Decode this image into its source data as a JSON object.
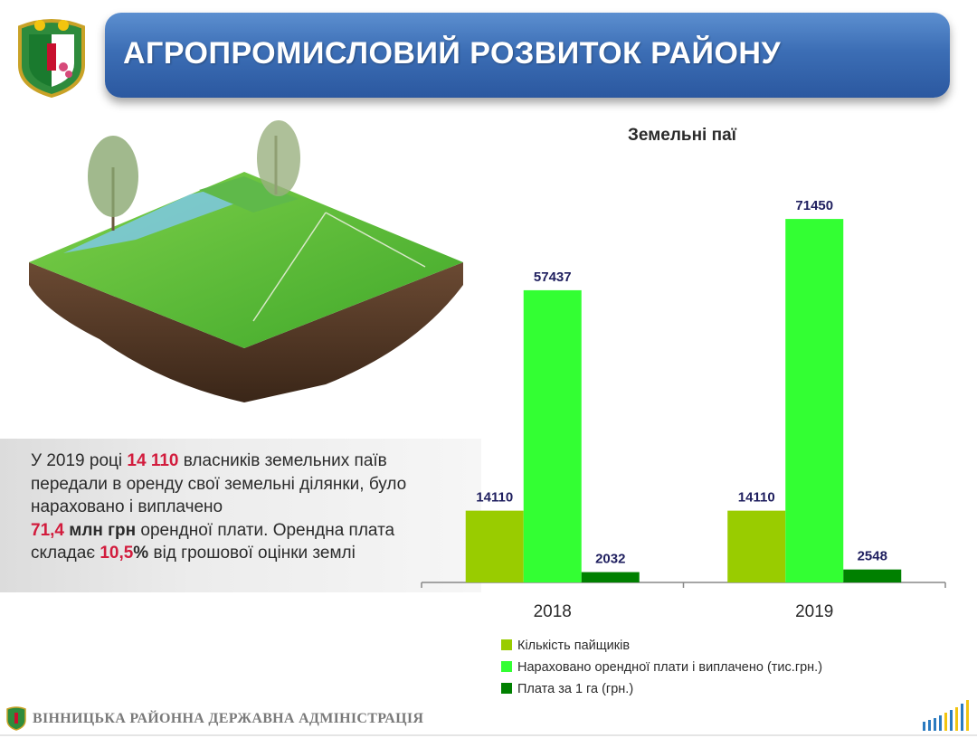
{
  "header": {
    "title": "АГРОПРОМИСЛОВИЙ РОЗВИТОК РАЙОНУ"
  },
  "info": {
    "s1": "У 2019 році ",
    "h1": "14 110",
    "s2": " власників земельних паїв передали в оренду свої земельні ділянки, було нараховано і виплачено ",
    "h2": "71,4",
    "h2b": " млн грн",
    "s3": " орендної плати. Орендна плата складає ",
    "h3": "10,5",
    "h3b": "%",
    "s4": " від грошової оцінки землі"
  },
  "footer": {
    "text": "ВІННИЦЬКА РАЙОННА ДЕРЖАВНА АДМІНІСТРАЦІЯ"
  },
  "colors": {
    "banner": "#3c6eb5",
    "highlight": "#d21c3d",
    "series1": "#99cc00",
    "series2": "#33ff33",
    "series3": "#008000",
    "value_label": "#1f1f5f"
  },
  "chart_data": {
    "type": "bar",
    "title": "Земельні паї",
    "categories": [
      "2018",
      "2019"
    ],
    "series": [
      {
        "name": "Кількість пайщиків",
        "values": [
          14110,
          14110
        ],
        "color": "#99cc00"
      },
      {
        "name": "Нараховано орендної плати і виплачено (тис.грн.)",
        "values": [
          57437,
          71450
        ],
        "color": "#33ff33"
      },
      {
        "name": "Плата за 1 га (грн.)",
        "values": [
          2032,
          2548
        ],
        "color": "#008000"
      }
    ],
    "ylim": [
      0,
      80000
    ],
    "grid": false,
    "legend": "bottom"
  }
}
